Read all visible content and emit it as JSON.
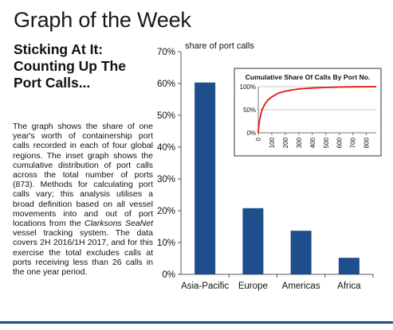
{
  "header": {
    "title": "Graph of the Week"
  },
  "article": {
    "headline_lines": [
      "Sticking At It:",
      "Counting Up The",
      "Port Calls..."
    ],
    "body_before_source": "The graph shows the share of one year's worth of containership port calls recorded in each of four global regions. The inset graph shows the cumulative distribution of port calls across the total number of ports (873). Methods for calculating port calls vary; this analysis utilises a broad definition based on all vessel movements into and out of port locations from the ",
    "body_source": "Clarksons SeaNet",
    "body_after_source": " vessel tracking system. The data covers 2H 2016/1H 2017, and for this exercise the total excludes calls at ports receiving less than 26 calls in the one year period."
  },
  "colors": {
    "bar": "#1f4e8c",
    "curve": "#e8120c",
    "rule": "#1f4e8c"
  },
  "chart_data": [
    {
      "type": "bar",
      "title": "",
      "ylabel": "share of port calls",
      "xlabel": "",
      "categories": [
        "Asia-Pacific",
        "Europe",
        "Americas",
        "Africa"
      ],
      "values": [
        60.3,
        20.8,
        13.7,
        5.2
      ],
      "ylim": [
        0,
        70
      ],
      "yticks": [
        "0%",
        "10%",
        "20%",
        "30%",
        "40%",
        "50%",
        "60%",
        "70%"
      ],
      "grid": false
    },
    {
      "type": "line",
      "title": "Cumulative  Share Of Calls By  Port No.",
      "xlim": [
        0,
        873
      ],
      "ylim": [
        0,
        100
      ],
      "xticks": [
        "0",
        "100",
        "200",
        "300",
        "400",
        "500",
        "600",
        "700",
        "800"
      ],
      "yticks": [
        "0%",
        "50%",
        "100%"
      ],
      "x": [
        0,
        5,
        10,
        20,
        30,
        50,
        75,
        100,
        150,
        200,
        250,
        300,
        400,
        500,
        600,
        700,
        800,
        873
      ],
      "y": [
        0,
        18,
        28,
        42,
        51,
        63,
        72,
        78,
        86,
        90,
        93,
        95,
        97,
        98.3,
        99.1,
        99.6,
        99.9,
        100
      ]
    }
  ]
}
